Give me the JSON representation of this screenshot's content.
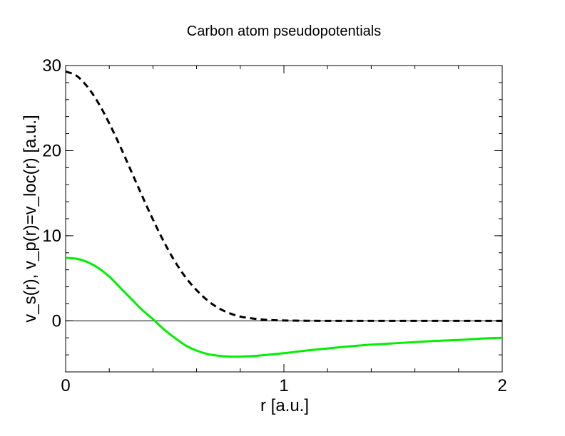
{
  "chart_data": {
    "type": "line",
    "title": "Carbon atom pseudopotentials",
    "xlabel": "r [a.u.]",
    "ylabel": "v_s(r),  v_p(r)=v_loc(r)  [a.u.]",
    "xlim": [
      0,
      2
    ],
    "ylim": [
      -6,
      30
    ],
    "xticks": [
      0,
      1,
      2
    ],
    "yticks": [
      0,
      10,
      20,
      30
    ],
    "xtick_labels": [
      "0",
      "1",
      "2"
    ],
    "ytick_labels": [
      "0",
      "10",
      "20",
      "30"
    ],
    "x_minor_step": 0.2,
    "y_minor_step": 2,
    "grid": false,
    "zero_line": true,
    "series": [
      {
        "color": "#000000",
        "style": "dashed",
        "x": [
          0,
          0.05,
          0.1,
          0.15,
          0.2,
          0.25,
          0.3,
          0.35,
          0.4,
          0.45,
          0.5,
          0.55,
          0.6,
          0.65,
          0.7,
          0.75,
          0.8,
          0.85,
          0.9,
          0.95,
          1.0,
          1.1,
          1.2,
          1.4,
          1.6,
          1.8,
          2.0
        ],
        "values": [
          29.3,
          28.8,
          27.5,
          25.6,
          23.2,
          20.5,
          17.6,
          14.7,
          11.9,
          9.3,
          7.0,
          5.1,
          3.6,
          2.4,
          1.5,
          0.9,
          0.5,
          0.3,
          0.15,
          0.08,
          0.04,
          0.01,
          0.0,
          0.0,
          0.0,
          0.0,
          0.0
        ]
      },
      {
        "color": "#00ee00",
        "style": "solid",
        "x": [
          0,
          0.05,
          0.1,
          0.15,
          0.2,
          0.25,
          0.3,
          0.35,
          0.4,
          0.45,
          0.5,
          0.55,
          0.6,
          0.65,
          0.7,
          0.75,
          0.8,
          0.85,
          0.9,
          1.0,
          1.1,
          1.2,
          1.3,
          1.4,
          1.5,
          1.6,
          1.7,
          1.8,
          1.9,
          2.0
        ],
        "values": [
          7.4,
          7.3,
          6.9,
          6.2,
          5.2,
          3.9,
          2.6,
          1.3,
          0.2,
          -1.0,
          -2.0,
          -2.9,
          -3.5,
          -3.9,
          -4.1,
          -4.2,
          -4.2,
          -4.15,
          -4.05,
          -3.8,
          -3.5,
          -3.25,
          -3.0,
          -2.8,
          -2.65,
          -2.5,
          -2.35,
          -2.25,
          -2.1,
          -2.0
        ]
      }
    ]
  }
}
